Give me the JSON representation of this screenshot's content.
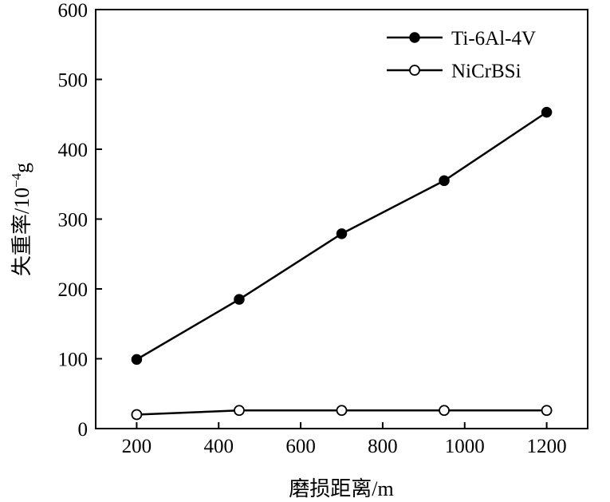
{
  "chart_data": {
    "type": "line",
    "title": "",
    "xlabel": "磨损距离/m",
    "ylabel_main": "失重率/10",
    "ylabel_exponent": "−4",
    "ylabel_unit": "g",
    "xlim": [
      100,
      1300
    ],
    "ylim": [
      0,
      600
    ],
    "xticks": [
      200,
      400,
      600,
      800,
      1000,
      1200
    ],
    "yticks": [
      0,
      100,
      200,
      300,
      400,
      500,
      600
    ],
    "grid": false,
    "legend_position": "top-right",
    "series": [
      {
        "name": "Ti-6Al-4V",
        "marker": "filled-circle",
        "x": [
          200,
          450,
          700,
          950,
          1200
        ],
        "y": [
          99,
          185,
          279,
          355,
          453
        ]
      },
      {
        "name": "NiCrBSi",
        "marker": "open-circle",
        "x": [
          200,
          450,
          700,
          950,
          1200
        ],
        "y": [
          20,
          26,
          26,
          26,
          26
        ]
      }
    ]
  }
}
